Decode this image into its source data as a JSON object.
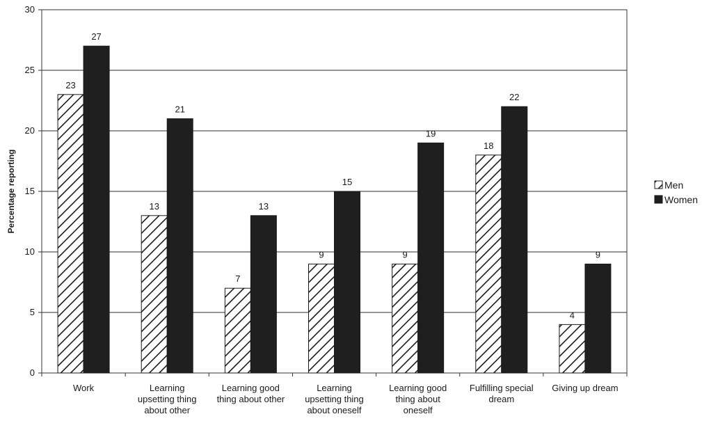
{
  "chart_data": {
    "type": "bar",
    "ylabel": "Percentage reporting",
    "ylim": [
      0,
      30
    ],
    "yticks": [
      0,
      5,
      10,
      15,
      20,
      25,
      30
    ],
    "grid": true,
    "legend_position": "right",
    "categories": [
      [
        "Work"
      ],
      [
        "Learning",
        "upsetting thing",
        "about other"
      ],
      [
        "Learning good",
        "thing about other"
      ],
      [
        "Learning",
        "upsetting thing",
        "about oneself"
      ],
      [
        "Learning good",
        "thing about",
        "oneself"
      ],
      [
        "Fulfilling special",
        "dream"
      ],
      [
        "Giving up dream"
      ]
    ],
    "series": [
      {
        "name": "Men",
        "values": [
          23,
          13,
          7,
          9,
          9,
          18,
          4
        ],
        "pattern": "diagonal-hatch"
      },
      {
        "name": "Women",
        "values": [
          27,
          21,
          13,
          15,
          19,
          22,
          9
        ],
        "color": "#1f1f1f"
      }
    ]
  }
}
